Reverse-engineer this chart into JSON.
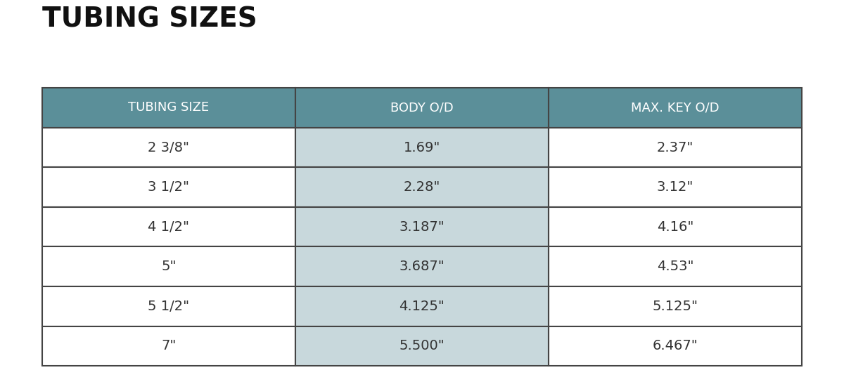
{
  "title": "TUBING SIZES",
  "headers": [
    "TUBING SIZE",
    "BODY O/D",
    "MAX. KEY O/D"
  ],
  "rows": [
    [
      "2 3/8\"",
      "1.69\"",
      "2.37\""
    ],
    [
      "3 1/2\"",
      "2.28\"",
      "3.12\""
    ],
    [
      "4 1/2\"",
      "3.187\"",
      "4.16\""
    ],
    [
      "5\"",
      "3.687\"",
      "4.53\""
    ],
    [
      "5 1/2\"",
      "4.125\"",
      "5.125\""
    ],
    [
      "7\"",
      "5.500\"",
      "6.467\""
    ]
  ],
  "header_bg_color": "#5b8f99",
  "header_text_color": "#ffffff",
  "body_col2_bg_color": "#c8d8dc",
  "body_col1_bg_color": "#ffffff",
  "body_col3_bg_color": "#ffffff",
  "border_color": "#444444",
  "text_color": "#333333",
  "background_color": "#ffffff",
  "title_fontsize": 28,
  "header_fontsize": 13,
  "cell_fontsize": 14,
  "fig_width": 12.0,
  "fig_height": 5.37
}
